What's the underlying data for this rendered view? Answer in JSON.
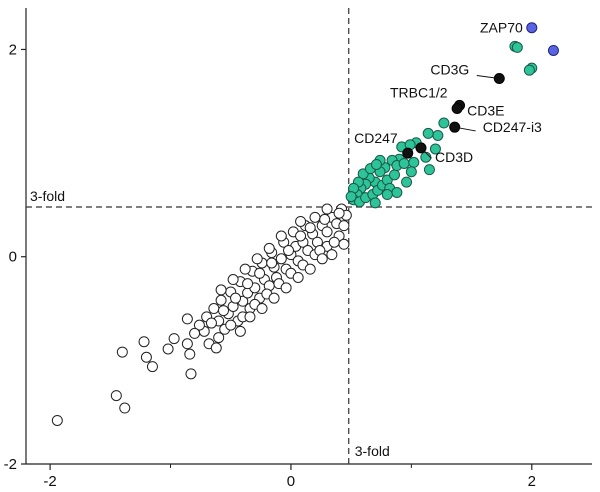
{
  "chart_data": {
    "type": "scatter",
    "xlim": [
      -2.2,
      2.5
    ],
    "ylim": [
      -2.0,
      2.4
    ],
    "x_ticks": [
      -2,
      0,
      2
    ],
    "y_ticks": [
      -2,
      0,
      2
    ],
    "x_tick_labels": [
      "-2",
      "0",
      "2"
    ],
    "y_tick_labels": [
      "-2",
      "0",
      "2"
    ],
    "x_minor_ticks": [
      -1,
      1
    ],
    "grid": false,
    "thresholds": [
      {
        "axis": "x",
        "value": 0.48,
        "label": "3-fold"
      },
      {
        "axis": "y",
        "value": 0.48,
        "label": "3-fold"
      }
    ],
    "colors": {
      "background_points": "#ffffff",
      "significant_points": "#2ec49a",
      "labeled_points": "#111111",
      "highlight_points": "#5a64e0",
      "threshold_lines": "#333333"
    },
    "highlight_points": [
      {
        "x": 2.0,
        "y": 2.21
      },
      {
        "x": 2.18,
        "y": 1.99
      }
    ],
    "labeled_genes": [
      {
        "name": "ZAP70",
        "x": 2.0,
        "y": 2.21
      },
      {
        "name": "CD3G",
        "x": 1.73,
        "y": 1.72
      },
      {
        "name": "TRBC1/2",
        "x": 1.4,
        "y": 1.46
      },
      {
        "name": "CD3E",
        "x": 1.38,
        "y": 1.43
      },
      {
        "name": "CD247-i3",
        "x": 1.36,
        "y": 1.25
      },
      {
        "name": "CD247",
        "x": 0.97,
        "y": 1.0
      },
      {
        "name": "CD3D",
        "x": 1.08,
        "y": 1.05
      }
    ],
    "significant_points": [
      {
        "x": 1.86,
        "y": 2.03
      },
      {
        "x": 2.0,
        "y": 1.82
      },
      {
        "x": 1.98,
        "y": 1.8
      },
      {
        "x": 1.88,
        "y": 2.02
      },
      {
        "x": 1.27,
        "y": 1.29
      },
      {
        "x": 1.22,
        "y": 1.17
      },
      {
        "x": 1.14,
        "y": 1.19
      },
      {
        "x": 1.04,
        "y": 1.1
      },
      {
        "x": 1.12,
        "y": 0.96
      },
      {
        "x": 1.2,
        "y": 1.04
      },
      {
        "x": 1.15,
        "y": 0.84
      },
      {
        "x": 0.92,
        "y": 1.06
      },
      {
        "x": 0.99,
        "y": 1.08
      },
      {
        "x": 0.9,
        "y": 0.94
      },
      {
        "x": 0.84,
        "y": 0.93
      },
      {
        "x": 0.78,
        "y": 0.86
      },
      {
        "x": 0.74,
        "y": 0.82
      },
      {
        "x": 0.7,
        "y": 0.72
      },
      {
        "x": 0.65,
        "y": 0.76
      },
      {
        "x": 0.62,
        "y": 0.7
      },
      {
        "x": 0.58,
        "y": 0.66
      },
      {
        "x": 0.55,
        "y": 0.6
      },
      {
        "x": 0.52,
        "y": 0.55
      },
      {
        "x": 0.57,
        "y": 0.53
      },
      {
        "x": 0.62,
        "y": 0.57
      },
      {
        "x": 0.68,
        "y": 0.6
      },
      {
        "x": 0.72,
        "y": 0.64
      },
      {
        "x": 0.76,
        "y": 0.69
      },
      {
        "x": 0.8,
        "y": 0.74
      },
      {
        "x": 0.86,
        "y": 0.79
      },
      {
        "x": 0.88,
        "y": 0.88
      },
      {
        "x": 0.94,
        "y": 0.9
      },
      {
        "x": 1.02,
        "y": 0.91
      },
      {
        "x": 0.82,
        "y": 0.66
      },
      {
        "x": 0.88,
        "y": 0.62
      },
      {
        "x": 0.96,
        "y": 0.72
      },
      {
        "x": 1.0,
        "y": 0.82
      },
      {
        "x": 0.6,
        "y": 0.8
      },
      {
        "x": 0.66,
        "y": 0.85
      },
      {
        "x": 0.56,
        "y": 0.72
      },
      {
        "x": 0.52,
        "y": 0.66
      },
      {
        "x": 0.5,
        "y": 0.58
      },
      {
        "x": 0.74,
        "y": 0.93
      },
      {
        "x": 0.71,
        "y": 0.89
      },
      {
        "x": 0.8,
        "y": 0.6
      },
      {
        "x": 0.7,
        "y": 0.52
      }
    ],
    "background_points": [
      {
        "x": -1.94,
        "y": -1.58
      },
      {
        "x": -1.45,
        "y": -1.34
      },
      {
        "x": -1.38,
        "y": -1.46
      },
      {
        "x": -1.4,
        "y": -0.92
      },
      {
        "x": -1.22,
        "y": -0.82
      },
      {
        "x": -1.2,
        "y": -0.97
      },
      {
        "x": -1.15,
        "y": -1.06
      },
      {
        "x": -1.02,
        "y": -0.89
      },
      {
        "x": -0.97,
        "y": -0.79
      },
      {
        "x": -0.86,
        "y": -0.84
      },
      {
        "x": -0.84,
        "y": -0.94
      },
      {
        "x": -0.83,
        "y": -1.13
      },
      {
        "x": -0.86,
        "y": -0.6
      },
      {
        "x": -0.72,
        "y": -0.72
      },
      {
        "x": -0.68,
        "y": -0.84
      },
      {
        "x": -0.62,
        "y": -0.88
      },
      {
        "x": -0.7,
        "y": -0.58
      },
      {
        "x": -0.6,
        "y": -0.62
      },
      {
        "x": -0.55,
        "y": -0.7
      },
      {
        "x": -0.52,
        "y": -0.55
      },
      {
        "x": -0.48,
        "y": -0.48
      },
      {
        "x": -0.44,
        "y": -0.62
      },
      {
        "x": -0.4,
        "y": -0.43
      },
      {
        "x": -0.36,
        "y": -0.35
      },
      {
        "x": -0.34,
        "y": -0.5
      },
      {
        "x": -0.3,
        "y": -0.3
      },
      {
        "x": -0.26,
        "y": -0.4
      },
      {
        "x": -0.22,
        "y": -0.22
      },
      {
        "x": -0.18,
        "y": -0.28
      },
      {
        "x": -0.14,
        "y": -0.1
      },
      {
        "x": -0.12,
        "y": -0.2
      },
      {
        "x": -0.08,
        "y": -0.02
      },
      {
        "x": -0.04,
        "y": -0.12
      },
      {
        "x": 0.0,
        "y": 0.02
      },
      {
        "x": 0.04,
        "y": 0.1
      },
      {
        "x": 0.06,
        "y": -0.04
      },
      {
        "x": 0.1,
        "y": 0.14
      },
      {
        "x": 0.14,
        "y": 0.06
      },
      {
        "x": 0.18,
        "y": 0.22
      },
      {
        "x": 0.22,
        "y": 0.14
      },
      {
        "x": 0.26,
        "y": 0.3
      },
      {
        "x": 0.3,
        "y": 0.24
      },
      {
        "x": 0.34,
        "y": 0.38
      },
      {
        "x": 0.38,
        "y": 0.32
      },
      {
        "x": 0.42,
        "y": 0.46
      },
      {
        "x": 0.46,
        "y": 0.4
      },
      {
        "x": 0.3,
        "y": 0.46
      },
      {
        "x": 0.2,
        "y": 0.38
      },
      {
        "x": 0.12,
        "y": 0.3
      },
      {
        "x": 0.02,
        "y": 0.24
      },
      {
        "x": -0.06,
        "y": 0.14
      },
      {
        "x": -0.16,
        "y": 0.04
      },
      {
        "x": -0.24,
        "y": -0.06
      },
      {
        "x": -0.32,
        "y": -0.14
      },
      {
        "x": -0.42,
        "y": -0.24
      },
      {
        "x": -0.5,
        "y": -0.34
      },
      {
        "x": -0.58,
        "y": -0.42
      },
      {
        "x": -0.64,
        "y": -0.5
      },
      {
        "x": -0.4,
        "y": -0.58
      },
      {
        "x": -0.3,
        "y": -0.46
      },
      {
        "x": -0.2,
        "y": -0.36
      },
      {
        "x": -0.1,
        "y": -0.26
      },
      {
        "x": 0.0,
        "y": -0.16
      },
      {
        "x": 0.1,
        "y": -0.08
      },
      {
        "x": 0.2,
        "y": 0.02
      },
      {
        "x": 0.3,
        "y": 0.1
      },
      {
        "x": 0.4,
        "y": 0.2
      },
      {
        "x": 0.44,
        "y": 0.3
      },
      {
        "x": 0.36,
        "y": 0.14
      },
      {
        "x": 0.24,
        "y": 0.06
      },
      {
        "x": -0.76,
        "y": -0.66
      },
      {
        "x": -0.8,
        "y": -0.74
      },
      {
        "x": -0.66,
        "y": -0.64
      },
      {
        "x": -0.56,
        "y": -0.52
      },
      {
        "x": -0.46,
        "y": -0.4
      },
      {
        "x": -0.36,
        "y": -0.26
      },
      {
        "x": -0.26,
        "y": -0.16
      },
      {
        "x": -0.16,
        "y": -0.06
      },
      {
        "x": -0.02,
        "y": 0.06
      },
      {
        "x": 0.08,
        "y": 0.2
      },
      {
        "x": 0.16,
        "y": 0.28
      },
      {
        "x": 0.28,
        "y": 0.36
      },
      {
        "x": 0.4,
        "y": 0.42
      },
      {
        "x": -0.58,
        "y": -0.32
      },
      {
        "x": -0.48,
        "y": -0.22
      },
      {
        "x": -0.38,
        "y": -0.12
      },
      {
        "x": -0.28,
        "y": -0.02
      },
      {
        "x": -0.18,
        "y": 0.08
      },
      {
        "x": -0.08,
        "y": 0.2
      },
      {
        "x": 0.08,
        "y": 0.34
      },
      {
        "x": -0.6,
        "y": -0.78
      },
      {
        "x": -0.5,
        "y": -0.66
      },
      {
        "x": -0.42,
        "y": -0.72
      },
      {
        "x": -0.34,
        "y": -0.58
      },
      {
        "x": -0.24,
        "y": -0.5
      },
      {
        "x": -0.14,
        "y": -0.4
      },
      {
        "x": -0.04,
        "y": -0.3
      },
      {
        "x": 0.06,
        "y": -0.2
      },
      {
        "x": 0.16,
        "y": -0.12
      },
      {
        "x": 0.26,
        "y": -0.02
      },
      {
        "x": 0.34,
        "y": 0.02
      },
      {
        "x": 0.44,
        "y": 0.12
      }
    ]
  }
}
